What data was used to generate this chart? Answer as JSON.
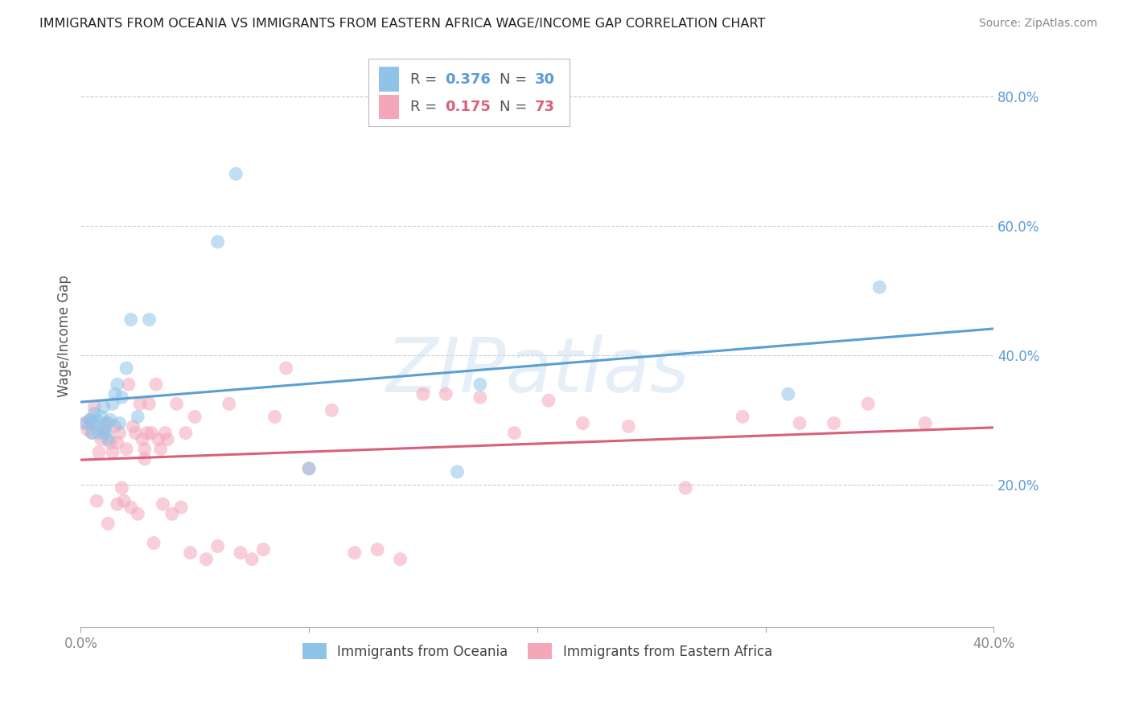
{
  "title": "IMMIGRANTS FROM OCEANIA VS IMMIGRANTS FROM EASTERN AFRICA WAGE/INCOME GAP CORRELATION CHART",
  "source": "Source: ZipAtlas.com",
  "ylabel": "Wage/Income Gap",
  "xlim": [
    0.0,
    0.4
  ],
  "ylim": [
    -0.02,
    0.88
  ],
  "right_yticks": [
    0.2,
    0.4,
    0.6,
    0.8
  ],
  "right_yticklabels": [
    "20.0%",
    "40.0%",
    "60.0%",
    "80.0%"
  ],
  "legend_r1": "0.376",
  "legend_n1": "30",
  "legend_r2": "0.175",
  "legend_n2": "73",
  "color_blue": "#8ec4e8",
  "color_pink": "#f4a7b9",
  "color_blue_line": "#5a9fd4",
  "color_pink_line": "#d9607a",
  "color_blue_text": "#5b9bd5",
  "color_pink_text": "#d9607a",
  "watermark": "ZIPatlas",
  "oceania_x": [
    0.002,
    0.004,
    0.005,
    0.005,
    0.006,
    0.007,
    0.008,
    0.009,
    0.01,
    0.01,
    0.011,
    0.012,
    0.012,
    0.013,
    0.014,
    0.015,
    0.016,
    0.017,
    0.018,
    0.02,
    0.022,
    0.025,
    0.03,
    0.06,
    0.068,
    0.1,
    0.165,
    0.175,
    0.31,
    0.35
  ],
  "oceania_y": [
    0.295,
    0.3,
    0.295,
    0.28,
    0.31,
    0.3,
    0.28,
    0.305,
    0.285,
    0.32,
    0.28,
    0.27,
    0.295,
    0.3,
    0.325,
    0.34,
    0.355,
    0.295,
    0.335,
    0.38,
    0.455,
    0.305,
    0.455,
    0.575,
    0.68,
    0.225,
    0.22,
    0.355,
    0.34,
    0.505
  ],
  "eastern_x": [
    0.002,
    0.003,
    0.004,
    0.005,
    0.005,
    0.006,
    0.007,
    0.008,
    0.009,
    0.01,
    0.01,
    0.011,
    0.012,
    0.013,
    0.014,
    0.015,
    0.016,
    0.016,
    0.017,
    0.018,
    0.019,
    0.02,
    0.021,
    0.022,
    0.023,
    0.024,
    0.025,
    0.026,
    0.027,
    0.028,
    0.028,
    0.029,
    0.03,
    0.031,
    0.032,
    0.033,
    0.034,
    0.035,
    0.036,
    0.037,
    0.038,
    0.04,
    0.042,
    0.044,
    0.046,
    0.048,
    0.05,
    0.055,
    0.06,
    0.065,
    0.07,
    0.075,
    0.08,
    0.085,
    0.09,
    0.1,
    0.11,
    0.12,
    0.13,
    0.14,
    0.15,
    0.16,
    0.175,
    0.19,
    0.205,
    0.22,
    0.24,
    0.265,
    0.29,
    0.315,
    0.33,
    0.345,
    0.37
  ],
  "eastern_y": [
    0.295,
    0.285,
    0.3,
    0.28,
    0.295,
    0.32,
    0.175,
    0.25,
    0.27,
    0.285,
    0.28,
    0.295,
    0.14,
    0.265,
    0.25,
    0.29,
    0.265,
    0.17,
    0.28,
    0.195,
    0.175,
    0.255,
    0.355,
    0.165,
    0.29,
    0.28,
    0.155,
    0.325,
    0.27,
    0.24,
    0.255,
    0.28,
    0.325,
    0.28,
    0.11,
    0.355,
    0.27,
    0.255,
    0.17,
    0.28,
    0.27,
    0.155,
    0.325,
    0.165,
    0.28,
    0.095,
    0.305,
    0.085,
    0.105,
    0.325,
    0.095,
    0.085,
    0.1,
    0.305,
    0.38,
    0.225,
    0.315,
    0.095,
    0.1,
    0.085,
    0.34,
    0.34,
    0.335,
    0.28,
    0.33,
    0.295,
    0.29,
    0.195,
    0.305,
    0.295,
    0.295,
    0.325,
    0.295
  ]
}
